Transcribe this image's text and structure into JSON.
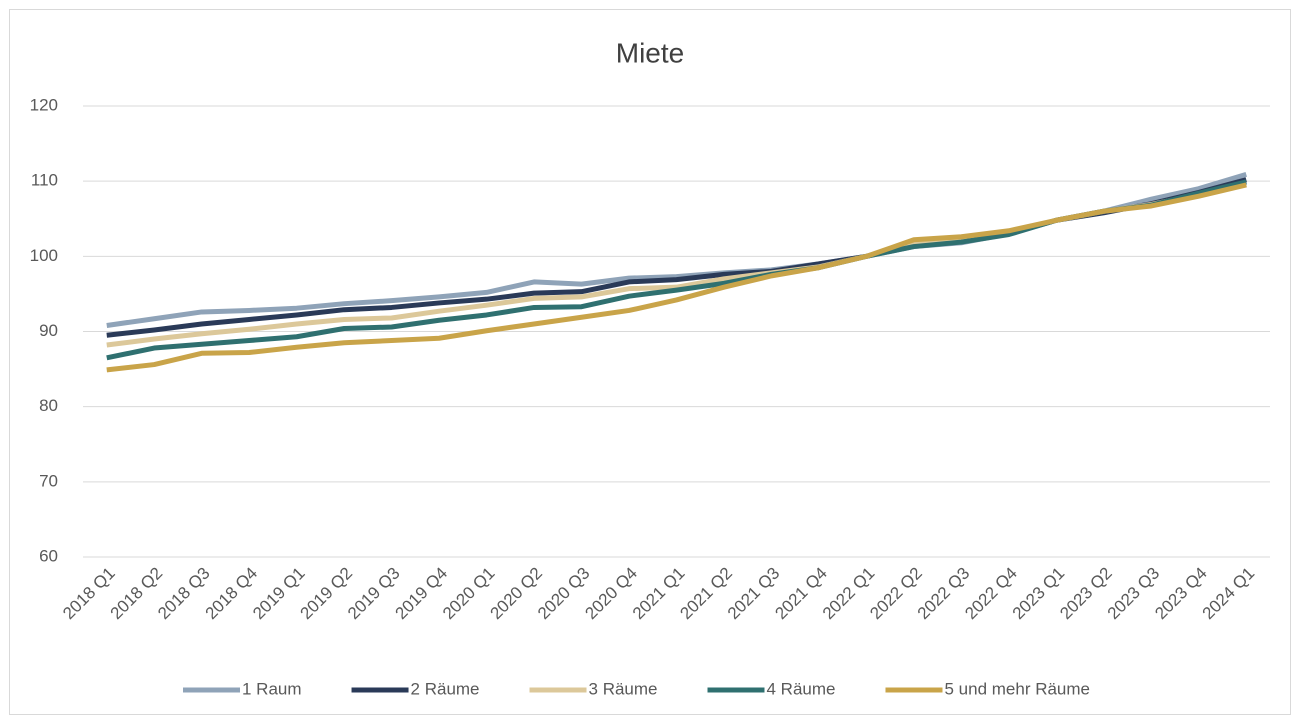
{
  "chart_data": {
    "type": "line",
    "title": "Miete",
    "categories": [
      "2018 Q1",
      "2018 Q2",
      "2018 Q3",
      "2018 Q4",
      "2019 Q1",
      "2019 Q2",
      "2019 Q3",
      "2019 Q4",
      "2020 Q1",
      "2020 Q2",
      "2020 Q3",
      "2020 Q4",
      "2021 Q1",
      "2021 Q2",
      "2021 Q3",
      "2021 Q4",
      "2022 Q1",
      "2022 Q2",
      "2022 Q3",
      "2022 Q4",
      "2023 Q1",
      "2023 Q2",
      "2023 Q3",
      "2023 Q4",
      "2024 Q1"
    ],
    "series": [
      {
        "name": "1 Raum",
        "color": "#8fa3b8",
        "values": [
          90.8,
          91.7,
          92.6,
          92.8,
          93.1,
          93.7,
          94.1,
          94.6,
          95.2,
          96.6,
          96.3,
          97.1,
          97.3,
          97.8,
          98.2,
          99.0,
          100,
          101.3,
          101.8,
          103.0,
          104.8,
          106.0,
          107.6,
          109.0,
          110.9
        ]
      },
      {
        "name": "2 Räume",
        "color": "#2a3a58",
        "values": [
          89.5,
          90.2,
          91.0,
          91.6,
          92.2,
          92.9,
          93.2,
          93.8,
          94.3,
          95.1,
          95.3,
          96.6,
          96.9,
          97.6,
          98.0,
          99.0,
          100,
          101.6,
          102.2,
          103.0,
          104.8,
          105.8,
          107.0,
          108.5,
          110.2
        ]
      },
      {
        "name": "3 Räume",
        "color": "#dcc89a",
        "values": [
          88.2,
          89.0,
          89.7,
          90.3,
          91.0,
          91.6,
          91.8,
          92.7,
          93.5,
          94.4,
          94.6,
          95.7,
          95.9,
          97.0,
          97.8,
          98.6,
          100,
          101.8,
          102.4,
          103.2,
          104.8,
          106.0,
          106.9,
          108.2,
          109.6
        ]
      },
      {
        "name": "4 Räume",
        "color": "#2f7070",
        "values": [
          86.5,
          87.8,
          88.3,
          88.8,
          89.3,
          90.4,
          90.6,
          91.5,
          92.2,
          93.2,
          93.3,
          94.7,
          95.5,
          96.4,
          97.6,
          98.5,
          100,
          101.3,
          101.9,
          102.9,
          104.8,
          106.0,
          106.8,
          108.4,
          109.9
        ]
      },
      {
        "name": "5 und mehr Räume",
        "color": "#c9a449",
        "values": [
          84.9,
          85.6,
          87.1,
          87.2,
          87.9,
          88.5,
          88.8,
          89.1,
          90.1,
          91.0,
          91.9,
          92.8,
          94.2,
          95.9,
          97.4,
          98.5,
          100,
          102.2,
          102.6,
          103.4,
          104.8,
          106.0,
          106.7,
          108.0,
          109.5
        ]
      }
    ],
    "ylim": [
      60,
      120
    ],
    "yticks": [
      60,
      70,
      80,
      90,
      100,
      110,
      120
    ],
    "grid": true,
    "legend": "bottom"
  }
}
